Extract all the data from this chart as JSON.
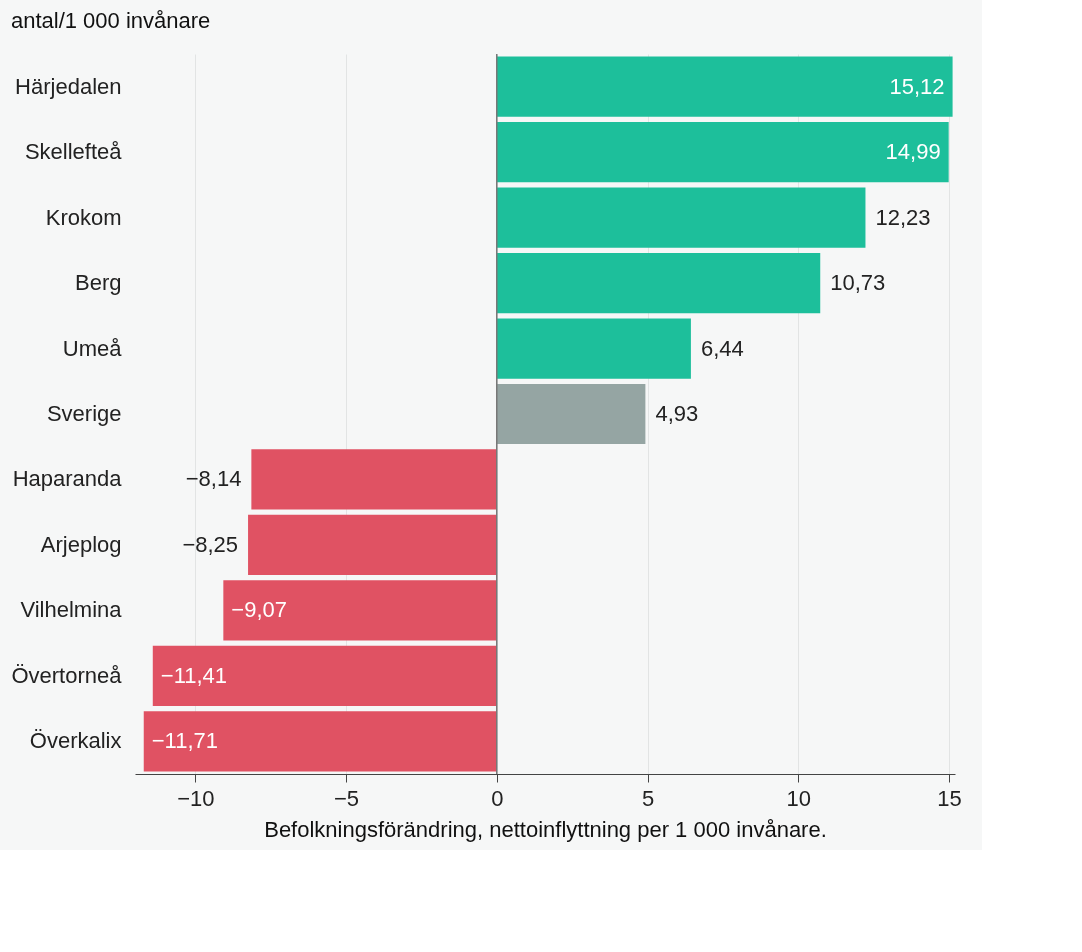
{
  "chart_data": {
    "type": "bar",
    "orientation": "horizontal",
    "title": "antal/1 000 invånare",
    "xlabel": "Befolkningsförändring, nettoinflyttning per 1 000 invånare.",
    "categories": [
      "Härjedalen",
      "Skellefteå",
      "Krokom",
      "Berg",
      "Umeå",
      "Sverige",
      "Haparanda",
      "Arjeplog",
      "Vilhelmina",
      "Övertorneå",
      "Överkalix"
    ],
    "values": [
      15.12,
      14.99,
      12.23,
      10.73,
      6.44,
      4.93,
      -8.14,
      -8.25,
      -9.07,
      -11.41,
      -11.71
    ],
    "colors": [
      "#1dbf9b",
      "#1dbf9b",
      "#1dbf9b",
      "#1dbf9b",
      "#1dbf9b",
      "#95a5a3",
      "#e05263",
      "#e05263",
      "#e05263",
      "#e05263",
      "#e05263"
    ],
    "value_labels": [
      "15,12",
      "14,99",
      "12,23",
      "10,73",
      "6,44",
      "4,93",
      "−8,14",
      "−8,25",
      "−9,07",
      "−11,41",
      "−11,71"
    ],
    "xlim": [
      -12,
      15.2
    ],
    "xticks": [
      {
        "value": -10,
        "label": "−10"
      },
      {
        "value": -5,
        "label": "−5"
      },
      0,
      5,
      10,
      15
    ],
    "ref_lines": [
      {
        "axis": "x",
        "value": 0,
        "color": "#777777"
      }
    ],
    "grid": "x"
  }
}
